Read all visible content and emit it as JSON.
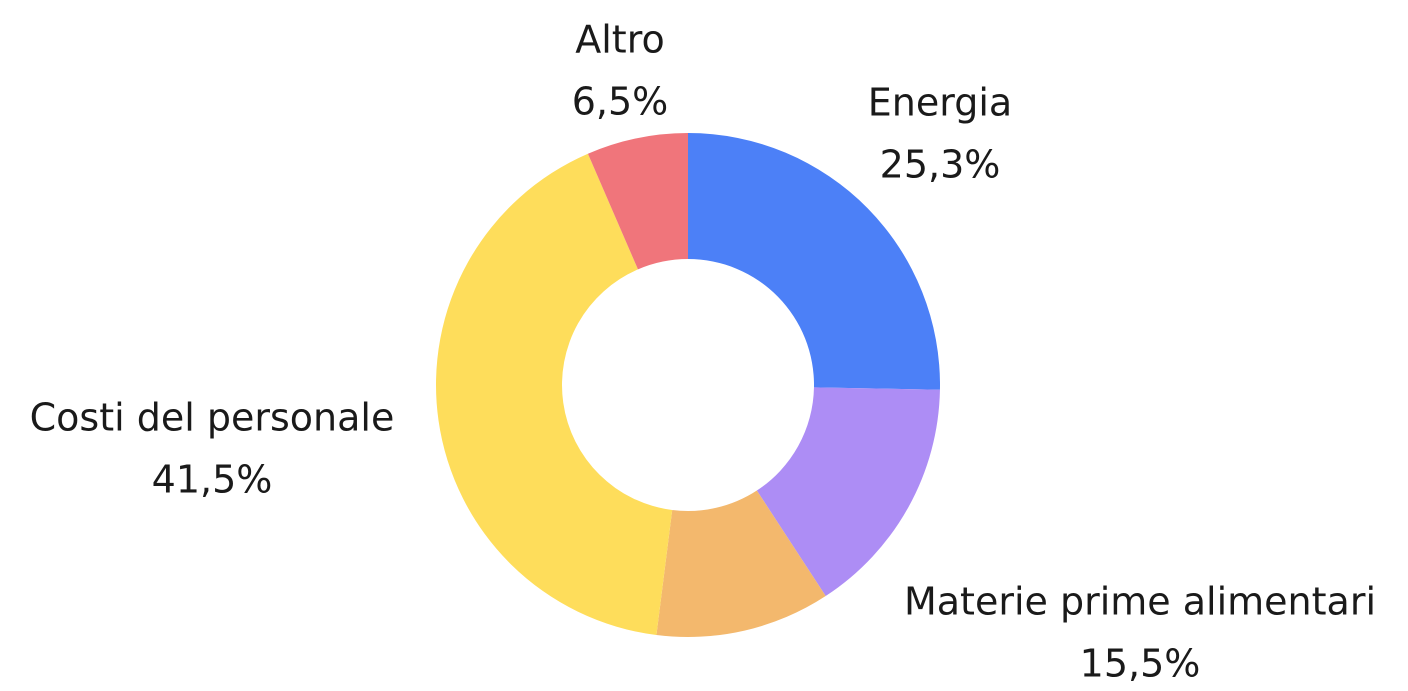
{
  "chart_data": {
    "type": "donut",
    "categories": [
      "Energia",
      "Materie prime alimentari",
      null,
      "Costi del personale",
      "Altro"
    ],
    "values": [
      25.3,
      15.5,
      11.2,
      41.5,
      6.5
    ],
    "value_labels": [
      "25,3%",
      "15,5%",
      null,
      "41,5%",
      "6,5%"
    ],
    "colors": [
      "#4c80f7",
      "#ad8df5",
      "#f3b86d",
      "#fedd5b",
      "#f0757b"
    ]
  }
}
